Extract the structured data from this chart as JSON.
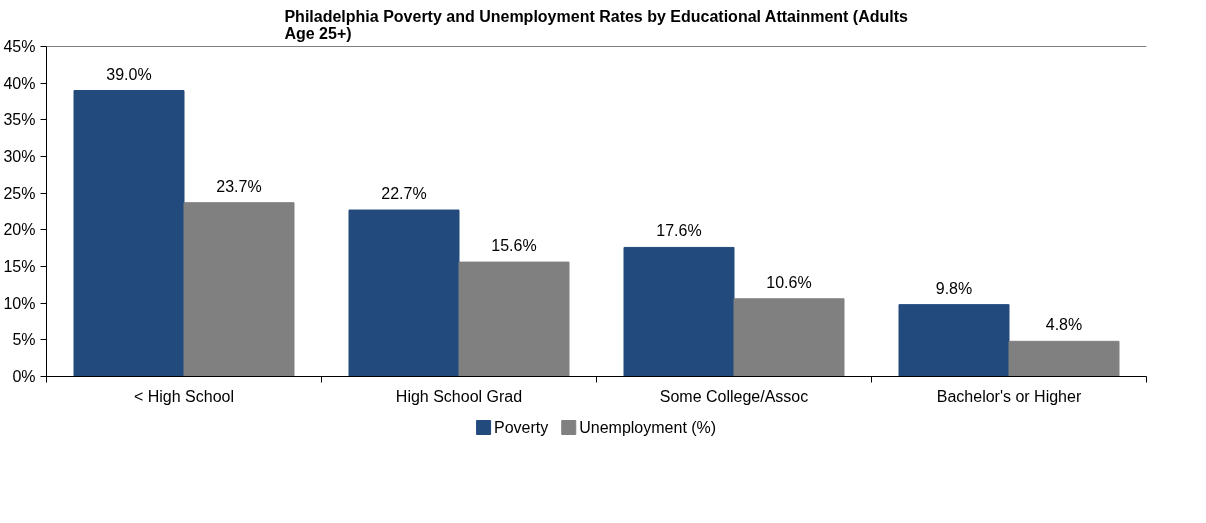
{
  "chart_data": {
    "type": "bar",
    "title": "Philadelphia Poverty and Unemployment Rates by Educational Attainment (Adults Age 25+)",
    "categories": [
      "< High School",
      "High School Grad",
      "Some College/Assoc",
      "Bachelor's or Higher"
    ],
    "series": [
      {
        "name": "Poverty",
        "color": "#234a7c",
        "values": [
          39.0,
          22.7,
          17.6,
          9.8
        ],
        "value_labels": [
          "39.0%",
          "22.7%",
          "17.6%",
          "9.8%"
        ]
      },
      {
        "name": "Unemployment (%)",
        "color": "#808080",
        "values": [
          23.7,
          15.6,
          10.6,
          4.8
        ],
        "value_labels": [
          "23.7%",
          "15.6%",
          "10.6%",
          "4.8%"
        ]
      }
    ],
    "ylim": [
      0,
      45
    ],
    "yticks": [
      {
        "value": 0,
        "label": "0%"
      },
      {
        "value": 5,
        "label": "5%"
      },
      {
        "value": 10,
        "label": "10%"
      },
      {
        "value": 15,
        "label": "15%"
      },
      {
        "value": 20,
        "label": "20%"
      },
      {
        "value": 25,
        "label": "25%"
      },
      {
        "value": 30,
        "label": "30%"
      },
      {
        "value": 35,
        "label": "35%"
      },
      {
        "value": 40,
        "label": "40%"
      },
      {
        "value": 45,
        "label": "45%"
      }
    ],
    "grid": false,
    "legend": "bottom"
  }
}
